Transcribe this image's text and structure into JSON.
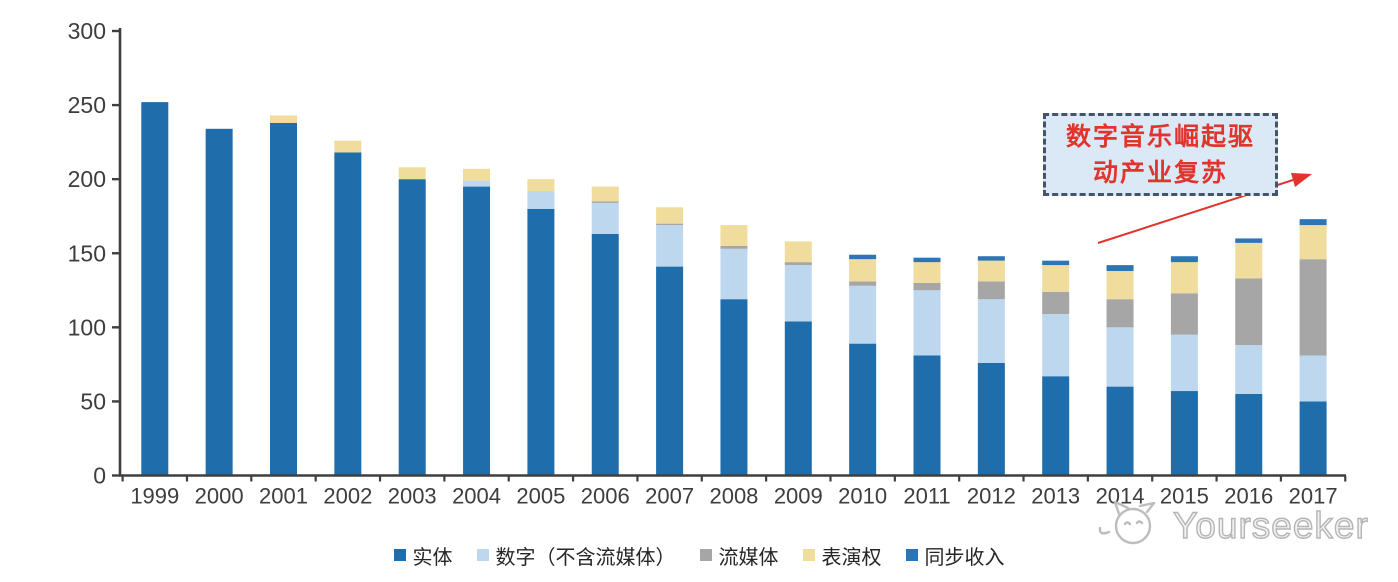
{
  "chart_data": {
    "type": "bar",
    "stacked": true,
    "title": "",
    "xlabel": "",
    "ylabel": "",
    "categories": [
      "1999",
      "2000",
      "2001",
      "2002",
      "2003",
      "2004",
      "2005",
      "2006",
      "2007",
      "2008",
      "2009",
      "2010",
      "2011",
      "2012",
      "2013",
      "2014",
      "2015",
      "2016",
      "2017"
    ],
    "series": [
      {
        "name": "实体",
        "color": "#1f6dab",
        "values": [
          252,
          234,
          238,
          218,
          200,
          195,
          180,
          163,
          141,
          119,
          104,
          89,
          81,
          76,
          67,
          60,
          57,
          55,
          50
        ]
      },
      {
        "name": "数字（不含流媒体）",
        "color": "#bdd7ee",
        "values": [
          0,
          0,
          0,
          0,
          0,
          4,
          12,
          21,
          28,
          34,
          38,
          39,
          44,
          43,
          42,
          40,
          38,
          33,
          31
        ]
      },
      {
        "name": "流媒体",
        "color": "#a6a6a6",
        "values": [
          0,
          0,
          0,
          0,
          0,
          0,
          0,
          1,
          1,
          2,
          2,
          3,
          5,
          12,
          15,
          19,
          28,
          45,
          65
        ]
      },
      {
        "name": "表演权",
        "color": "#f0dc9c",
        "values": [
          0,
          0,
          5,
          8,
          8,
          8,
          8,
          10,
          11,
          14,
          14,
          15,
          14,
          14,
          18,
          19,
          21,
          24,
          23
        ]
      },
      {
        "name": "同步收入",
        "color": "#2e75b6",
        "values": [
          0,
          0,
          0,
          0,
          0,
          0,
          0,
          0,
          0,
          0,
          0,
          3,
          3,
          3,
          3,
          4,
          4,
          3,
          4
        ]
      }
    ],
    "totals": [
      252,
      234,
      243,
      226,
      208,
      207,
      200,
      195,
      181,
      169,
      158,
      149,
      147,
      148,
      145,
      142,
      148,
      160,
      173
    ],
    "ylim": [
      0,
      300
    ],
    "yticks": [
      0,
      50,
      100,
      150,
      200,
      250,
      300
    ],
    "grid": false,
    "legend_position": "bottom",
    "axis_color": "#3f3f3f",
    "tick_label_color": "#3d3d3d"
  },
  "annotation": {
    "text": "数字音乐崛起驱动产业复苏",
    "line1": "数字音乐崛起驱",
    "line2": "动产业复苏",
    "box_fill": "#dbe9f7",
    "border_color": "#44546a",
    "text_color": "#e0342c",
    "arrow_color": "#e0342c"
  },
  "watermark": {
    "text": "Yourseeker",
    "color": "#b5b5b5",
    "logo": "yourseeker-cat-logo-icon"
  }
}
